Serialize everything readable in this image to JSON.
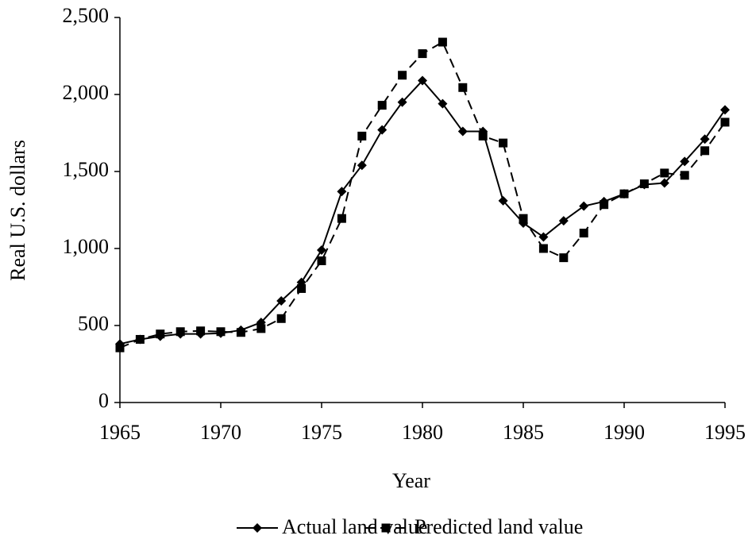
{
  "chart_data": {
    "type": "line",
    "x_label": "Year",
    "y_label": "Real U.S. dollars",
    "x": [
      1965,
      1966,
      1967,
      1968,
      1969,
      1970,
      1971,
      1972,
      1973,
      1974,
      1975,
      1976,
      1977,
      1978,
      1979,
      1980,
      1981,
      1982,
      1983,
      1984,
      1985,
      1986,
      1987,
      1988,
      1989,
      1990,
      1991,
      1992,
      1993,
      1994,
      1995
    ],
    "series": [
      {
        "name": "Actual land value",
        "color": "#000000",
        "dash": "solid",
        "marker": "diamond",
        "values": [
          380,
          410,
          430,
          445,
          445,
          450,
          470,
          520,
          660,
          780,
          990,
          1370,
          1540,
          1770,
          1950,
          2090,
          1940,
          1760,
          1760,
          1310,
          1165,
          1075,
          1180,
          1275,
          1305,
          1355,
          1415,
          1425,
          1565,
          1710,
          1900
        ]
      },
      {
        "name": "Predicted land value",
        "color": "#000000",
        "dash": "dashed",
        "marker": "square",
        "values": [
          355,
          410,
          445,
          460,
          465,
          460,
          455,
          480,
          545,
          740,
          920,
          1195,
          1730,
          1930,
          2125,
          2265,
          2340,
          2045,
          1730,
          1685,
          1195,
          1000,
          940,
          1100,
          1285,
          1355,
          1420,
          1490,
          1475,
          1635,
          1820
        ]
      }
    ],
    "xlim": [
      1965,
      1995
    ],
    "xticks": [
      1965,
      1970,
      1975,
      1980,
      1985,
      1990,
      1995
    ],
    "ylim": [
      0,
      2500
    ],
    "yticks": [
      0,
      500,
      {
        "value": 1000,
        "label": "1,000"
      },
      {
        "value": 1500,
        "label": "1,500"
      },
      {
        "value": 2000,
        "label": "2,000"
      },
      {
        "value": 2500,
        "label": "2,500"
      }
    ],
    "grid": false,
    "legend": "bottom"
  }
}
